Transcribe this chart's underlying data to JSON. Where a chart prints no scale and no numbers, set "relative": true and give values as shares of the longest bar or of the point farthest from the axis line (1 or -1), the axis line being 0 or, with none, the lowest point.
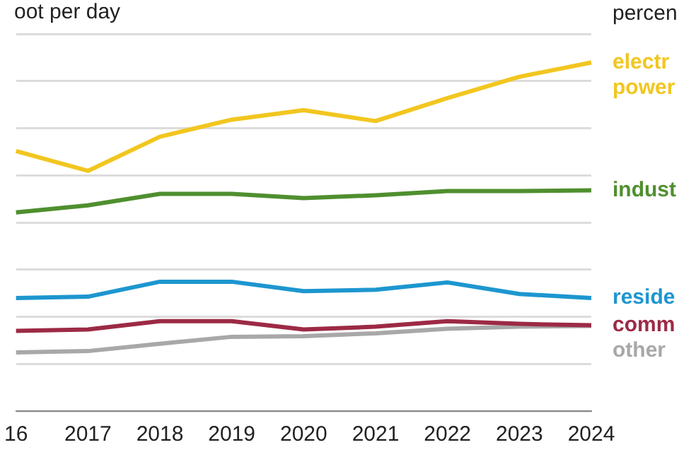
{
  "chart_data": {
    "type": "line",
    "title": "oot per day",
    "annotations": [
      "percen"
    ],
    "relative": true,
    "grid": "y",
    "legend": false,
    "marker": "none",
    "line_style": "solid",
    "categories": [
      "16",
      "2017",
      "2018",
      "2019",
      "2020",
      "2021",
      "2022",
      "2023",
      "2024"
    ],
    "series": [
      {
        "name": "electr power",
        "color": "#f2c61f",
        "values": [
          0.746,
          0.689,
          0.787,
          0.836,
          0.863,
          0.832,
          0.898,
          0.959,
          1
        ]
      },
      {
        "name": "indust",
        "color": "#4f8f2f",
        "values": [
          0.57,
          0.59,
          0.623,
          0.623,
          0.611,
          0.619,
          0.631,
          0.631,
          0.633
        ]
      },
      {
        "name": "reside",
        "color": "#1d96cf",
        "values": [
          0.324,
          0.328,
          0.371,
          0.371,
          0.344,
          0.348,
          0.369,
          0.336,
          0.324
        ]
      },
      {
        "name": "comm",
        "color": "#9c2a45",
        "values": [
          0.23,
          0.234,
          0.258,
          0.258,
          0.234,
          0.242,
          0.258,
          0.25,
          0.246
        ]
      },
      {
        "name": "other",
        "color": "#a8a8a8",
        "values": [
          0.168,
          0.172,
          0.193,
          0.213,
          0.215,
          0.223,
          0.236,
          0.242,
          0.244
        ]
      }
    ]
  }
}
